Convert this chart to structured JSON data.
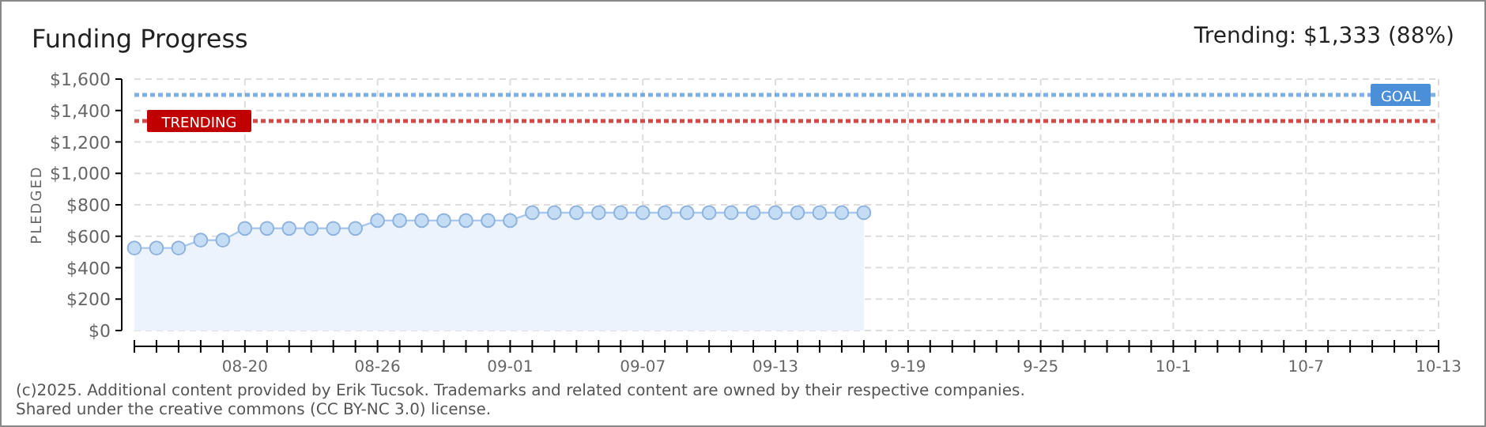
{
  "chart_data": {
    "type": "area",
    "title": "Funding Progress",
    "subtitle": "Trending: $1,333 (88%)",
    "ylabel": "PLEDGED",
    "x": [
      "2025-08-15",
      "2025-08-16",
      "2025-08-17",
      "2025-08-18",
      "2025-08-19",
      "2025-08-20",
      "2025-08-21",
      "2025-08-22",
      "2025-08-23",
      "2025-08-24",
      "2025-08-25",
      "2025-08-26",
      "2025-08-27",
      "2025-08-28",
      "2025-08-29",
      "2025-08-30",
      "2025-08-31",
      "2025-09-01",
      "2025-09-02",
      "2025-09-03",
      "2025-09-04",
      "2025-09-05",
      "2025-09-06",
      "2025-09-07",
      "2025-09-08",
      "2025-09-09",
      "2025-09-10",
      "2025-09-11",
      "2025-09-12",
      "2025-09-13",
      "2025-09-14",
      "2025-09-15",
      "2025-09-16",
      "2025-09-17"
    ],
    "series": [
      {
        "color": "#a9c8ec",
        "values": [
          525,
          525,
          525,
          575,
          575,
          650,
          650,
          650,
          650,
          650,
          650,
          700,
          700,
          700,
          700,
          700,
          700,
          700,
          750,
          750,
          750,
          750,
          750,
          750,
          750,
          750,
          750,
          750,
          750,
          750,
          750,
          750,
          750,
          750
        ]
      }
    ],
    "xlim": [
      "2025-08-15",
      "2025-10-13"
    ],
    "xticks": [
      {
        "value": "2025-08-20",
        "label": "08-20"
      },
      {
        "value": "2025-08-26",
        "label": "08-26"
      },
      {
        "value": "2025-09-01",
        "label": "09-01"
      },
      {
        "value": "2025-09-07",
        "label": "09-07"
      },
      {
        "value": "2025-09-13",
        "label": "09-13"
      },
      {
        "value": "2025-09-19",
        "label": "9-19"
      },
      {
        "value": "2025-09-25",
        "label": "9-25"
      },
      {
        "value": "2025-10-01",
        "label": "10-1"
      },
      {
        "value": "2025-10-07",
        "label": "10-7"
      },
      {
        "value": "2025-10-13",
        "label": "10-13"
      }
    ],
    "ylim": [
      0,
      1600
    ],
    "yticks": [
      {
        "value": 0,
        "label": "$0"
      },
      {
        "value": 200,
        "label": "$200"
      },
      {
        "value": 400,
        "label": "$400"
      },
      {
        "value": 600,
        "label": "$600"
      },
      {
        "value": 800,
        "label": "$800"
      },
      {
        "value": 1000,
        "label": "$1,000"
      },
      {
        "value": 1200,
        "label": "$1,200"
      },
      {
        "value": 1400,
        "label": "$1,400"
      },
      {
        "value": 1600,
        "label": "$1,600"
      }
    ],
    "ref_lines": [
      {
        "axis": "y",
        "value": 1500,
        "label": "GOAL",
        "color": "#4a8fd8",
        "line_style": "dotted"
      },
      {
        "axis": "y",
        "value": 1333,
        "label": "TRENDING",
        "color": "#c00000",
        "line_style": "dotted"
      }
    ],
    "grid": true,
    "marker": "circle",
    "annotations": [
      "(c)2025. Additional content provided by Erik Tucsok. Trademarks and related content are owned by their respective companies.",
      "Shared under the creative commons (CC BY-NC 3.0) license."
    ]
  }
}
